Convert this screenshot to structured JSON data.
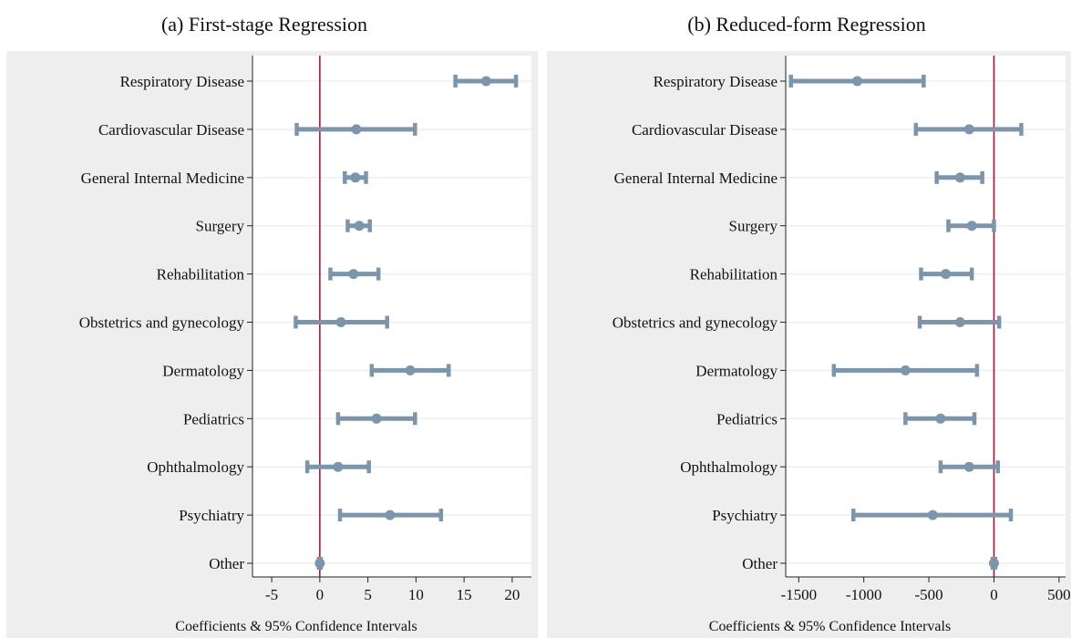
{
  "panels": {
    "a": {
      "title": "(a) First-stage Regression"
    },
    "b": {
      "title": "(b) Reduced-form Regression"
    }
  },
  "colors": {
    "marker": "#7b96ac",
    "zero_line": "#9a1b3a",
    "grid": "#eaf0f5",
    "panel_bg": "#eeeeee",
    "plot_bg": "#ffffff"
  },
  "chart_data": [
    {
      "type": "scatter",
      "subtype": "coefficient-plot-with-error-bars",
      "title": "(a) First-stage Regression",
      "xlabel": "Coefficients & 95% Confidence Intervals",
      "ylabel": "",
      "xlim": [
        -7,
        22
      ],
      "xticks": [
        -5,
        0,
        5,
        10,
        15,
        20
      ],
      "reference_line": 0,
      "grid": true,
      "categories": [
        "Respiratory Disease",
        "Cardiovascular Disease",
        "General Internal Medicine",
        "Surgery",
        "Rehabilitation",
        "Obstetrics and gynecology",
        "Dermatology",
        "Pediatrics",
        "Ophthalmology",
        "Psychiatry",
        "Other"
      ],
      "estimates": [
        17.3,
        3.8,
        3.7,
        4.1,
        3.5,
        2.2,
        9.4,
        5.9,
        1.9,
        7.3,
        0.0
      ],
      "ci_low": [
        14.1,
        -2.4,
        2.6,
        2.9,
        1.1,
        -2.5,
        5.4,
        1.9,
        -1.3,
        2.1,
        -0.1
      ],
      "ci_high": [
        20.4,
        9.9,
        4.8,
        5.2,
        6.1,
        7.0,
        13.4,
        9.9,
        5.1,
        12.6,
        0.1
      ]
    },
    {
      "type": "scatter",
      "subtype": "coefficient-plot-with-error-bars",
      "title": "(b) Reduced-form Regression",
      "xlabel": "Coefficients & 95% Confidence Intervals",
      "ylabel": "",
      "xlim": [
        -1600,
        550
      ],
      "xticks": [
        -1500,
        -1000,
        -500,
        0,
        500
      ],
      "reference_line": 0,
      "grid": true,
      "categories": [
        "Respiratory Disease",
        "Cardiovascular Disease",
        "General Internal Medicine",
        "Surgery",
        "Rehabilitation",
        "Obstetrics and gynecology",
        "Dermatology",
        "Pediatrics",
        "Ophthalmology",
        "Psychiatry",
        "Other"
      ],
      "estimates": [
        -1050,
        -190,
        -260,
        -170,
        -370,
        -260,
        -680,
        -410,
        -190,
        -470,
        0
      ],
      "ci_low": [
        -1560,
        -600,
        -440,
        -350,
        -560,
        -570,
        -1230,
        -680,
        -410,
        -1080,
        -10
      ],
      "ci_high": [
        -540,
        210,
        -90,
        0,
        -170,
        40,
        -130,
        -150,
        30,
        130,
        10
      ]
    }
  ]
}
